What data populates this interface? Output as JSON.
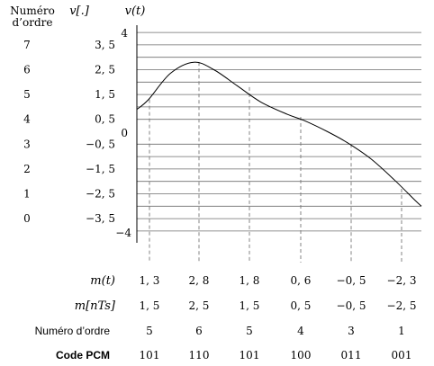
{
  "header": {
    "ordre_line1": "Numéro",
    "ordre_line2": "d’ordre",
    "v_col": "v[.]",
    "v_axis": "v(t)"
  },
  "y_axis": {
    "top": "4",
    "zero": "0",
    "bottom": "−4"
  },
  "levels": [
    {
      "ordre": "7",
      "value": "3, 5",
      "y": 3.5
    },
    {
      "ordre": "6",
      "value": "2, 5",
      "y": 2.5
    },
    {
      "ordre": "5",
      "value": "1, 5",
      "y": 1.5
    },
    {
      "ordre": "4",
      "value": "0, 5",
      "y": 0.5
    },
    {
      "ordre": "3",
      "value": "−0, 5",
      "y": -0.5
    },
    {
      "ordre": "2",
      "value": "−1, 5",
      "y": -1.5
    },
    {
      "ordre": "1",
      "value": "−2, 5",
      "y": -2.5
    },
    {
      "ordre": "0",
      "value": "−3, 5",
      "y": -3.5
    }
  ],
  "table": {
    "row_labels": [
      "m(t)",
      "m[nTs]",
      "Numéro d’ordre",
      "Code PCM"
    ],
    "samples": [
      {
        "m": "1, 3",
        "mq": "1, 5",
        "ordre": "5",
        "code": "101",
        "y": 1.3
      },
      {
        "m": "2, 8",
        "mq": "2, 5",
        "ordre": "6",
        "code": "110",
        "y": 2.8
      },
      {
        "m": "1, 8",
        "mq": "1, 5",
        "ordre": "5",
        "code": "101",
        "y": 1.8
      },
      {
        "m": "0, 6",
        "mq": "0, 5",
        "ordre": "4",
        "code": "100",
        "y": 0.6
      },
      {
        "m": "−0, 5",
        "mq": "−0, 5",
        "ordre": "3",
        "code": "011",
        "y": -0.5
      },
      {
        "m": "−2, 3",
        "mq": "−2, 5",
        "ordre": "1",
        "code": "001",
        "y": -2.3
      }
    ]
  },
  "curve": [
    {
      "t": 0.0,
      "y": 0.9
    },
    {
      "t": 0.35,
      "y": 1.3
    },
    {
      "t": 1.0,
      "y": 2.35
    },
    {
      "t": 1.7,
      "y": 2.8
    },
    {
      "t": 2.3,
      "y": 2.5
    },
    {
      "t": 3.0,
      "y": 1.85
    },
    {
      "t": 3.7,
      "y": 1.2
    },
    {
      "t": 4.5,
      "y": 0.7
    },
    {
      "t": 5.0,
      "y": 0.45
    },
    {
      "t": 5.7,
      "y": 0.0
    },
    {
      "t": 6.3,
      "y": -0.45
    },
    {
      "t": 7.0,
      "y": -1.1
    },
    {
      "t": 7.7,
      "y": -1.95
    },
    {
      "t": 8.3,
      "y": -2.75
    },
    {
      "t": 8.5,
      "y": -3.0
    }
  ],
  "colors": {
    "ink": "#000000",
    "grid": "#6e6e6e",
    "dashed": "#777777"
  }
}
